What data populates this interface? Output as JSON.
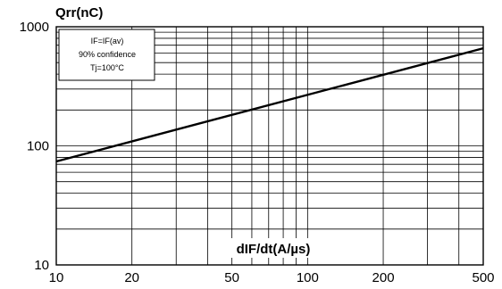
{
  "chart_data": {
    "type": "line",
    "ylabel": "Qrr(nC)",
    "xlabel": "dIF/dt(A/µs)",
    "x_scale": "log",
    "y_scale": "log",
    "xlim": [
      10,
      500
    ],
    "ylim": [
      10,
      1000
    ],
    "grid": true,
    "x_ticks": [
      10,
      20,
      50,
      100,
      200,
      500
    ],
    "x_tick_labels": [
      "10",
      "20",
      "50",
      "100",
      "200",
      "500"
    ],
    "y_ticks": [
      10,
      100,
      1000
    ],
    "y_tick_labels": [
      "10",
      "100",
      "1000"
    ],
    "annotation_lines": [
      "IF=IF(av)",
      "90% confidence",
      "Tj=100°C"
    ],
    "series": [
      {
        "color": "#000000",
        "x": [
          10,
          500
        ],
        "y": [
          74,
          660
        ]
      }
    ]
  }
}
